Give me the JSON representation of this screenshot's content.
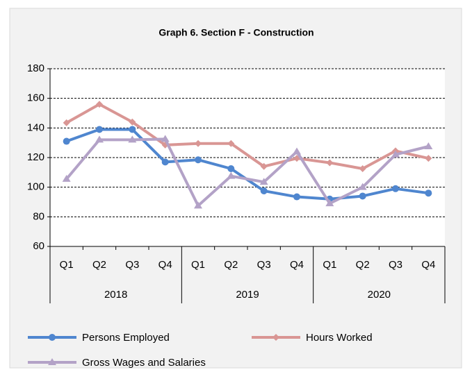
{
  "chart_data": {
    "type": "line",
    "title": "Graph 6. Section F - Construction",
    "categories": [
      "Q1",
      "Q2",
      "Q3",
      "Q4",
      "Q1",
      "Q2",
      "Q3",
      "Q4",
      "Q1",
      "Q2",
      "Q3",
      "Q4"
    ],
    "groups": [
      "2018",
      "2019",
      "2020"
    ],
    "series": [
      {
        "name": "Persons Employed",
        "color": "#4f86cf",
        "marker": "circle",
        "values": [
          131,
          139,
          139,
          117,
          118.5,
          112.5,
          97.5,
          93.5,
          92,
          94,
          99,
          96
        ]
      },
      {
        "name": "Hours Worked",
        "color": "#d99694",
        "marker": "diamond",
        "values": [
          143.5,
          156,
          144,
          128.5,
          129.5,
          129.5,
          114,
          119.5,
          116.5,
          112.5,
          124.5,
          119.5
        ]
      },
      {
        "name": "Gross Wages and Salaries",
        "color": "#b3a2c7",
        "marker": "triangle",
        "values": [
          105.5,
          132,
          132,
          132.5,
          87.5,
          107.5,
          103.5,
          124,
          89,
          100,
          122,
          127.5
        ]
      }
    ],
    "ylim": [
      60,
      180
    ],
    "yticks": [
      60,
      80,
      100,
      120,
      140,
      160,
      180
    ],
    "grid": true
  }
}
